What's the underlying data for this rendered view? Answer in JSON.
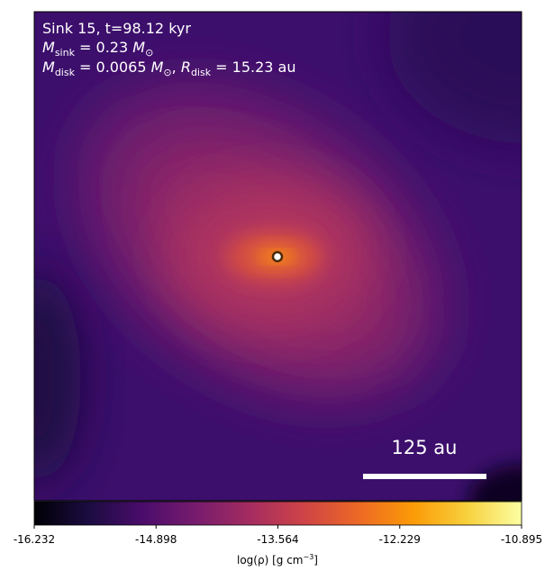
{
  "chart_data": {
    "type": "image",
    "title_lines": [
      [
        "Sink 15, t=98.12 kyr"
      ],
      [
        "M",
        "sink",
        " = 0.23 ",
        "M",
        "⊙"
      ],
      [
        "M",
        "disk",
        " = 0.0065 ",
        "M",
        "⊙",
        ", ",
        "R",
        "disk",
        " = 15.23 au"
      ]
    ],
    "scale_bar_label": "125 au",
    "colorbar": {
      "clim": [
        -16.232,
        -10.895
      ],
      "ticks": [
        -16.232,
        -14.898,
        -13.564,
        -12.229,
        -10.895
      ],
      "label": [
        "log(ρ) [g cm",
        "−3",
        "]"
      ],
      "colormap": [
        "#000004",
        "#1b0c41",
        "#4a0c6b",
        "#781c6d",
        "#a52c60",
        "#cf4446",
        "#ed6925",
        "#fb9b06",
        "#f7d13d",
        "#fcffa4"
      ]
    }
  }
}
